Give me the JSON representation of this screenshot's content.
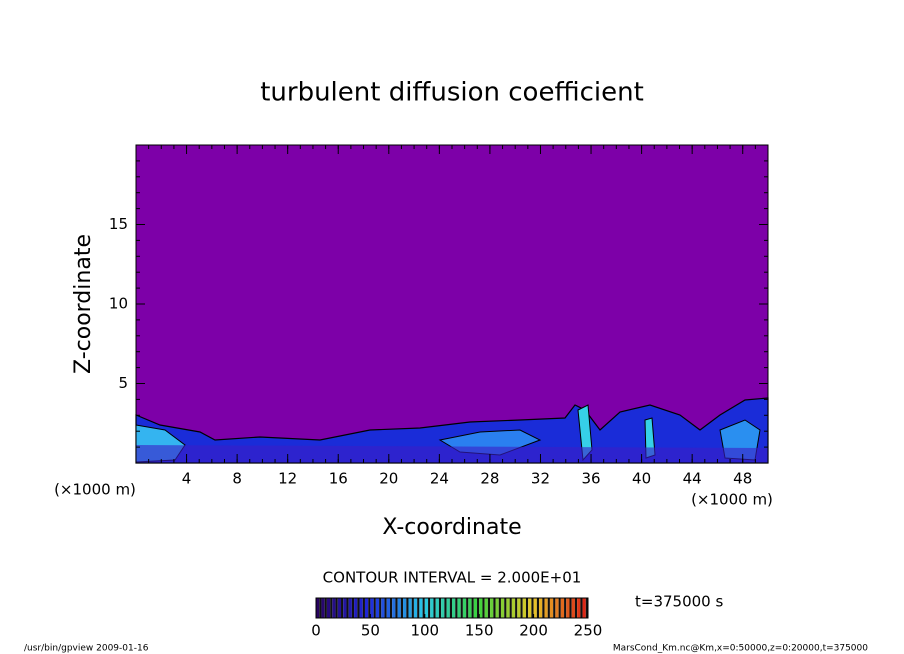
{
  "chart_data": {
    "type": "contour",
    "title": "turbulent diffusion coefficient",
    "x_label": "X-coordinate",
    "y_label": "Z-coordinate",
    "x_unit": "(×1000 m)",
    "y_unit": "(×1000 m)",
    "xlim": [
      0,
      50
    ],
    "xticks": [
      4,
      8,
      12,
      16,
      20,
      24,
      28,
      32,
      36,
      40,
      44,
      48
    ],
    "ylim": [
      0,
      20
    ],
    "yticks": [
      5,
      10,
      15
    ],
    "contour_interval": "CONTOUR INTERVAL = 2.000E+01",
    "time_label": "t=375000 s",
    "clim": [
      0,
      250
    ],
    "cticks": [
      0,
      50,
      100,
      150,
      200,
      250
    ],
    "footer_left": "/usr/bin/gpview  2009-01-16",
    "footer_right": "MarsCond_Km.nc@Km,x=0:50000,z=0:20000,t=375000"
  }
}
